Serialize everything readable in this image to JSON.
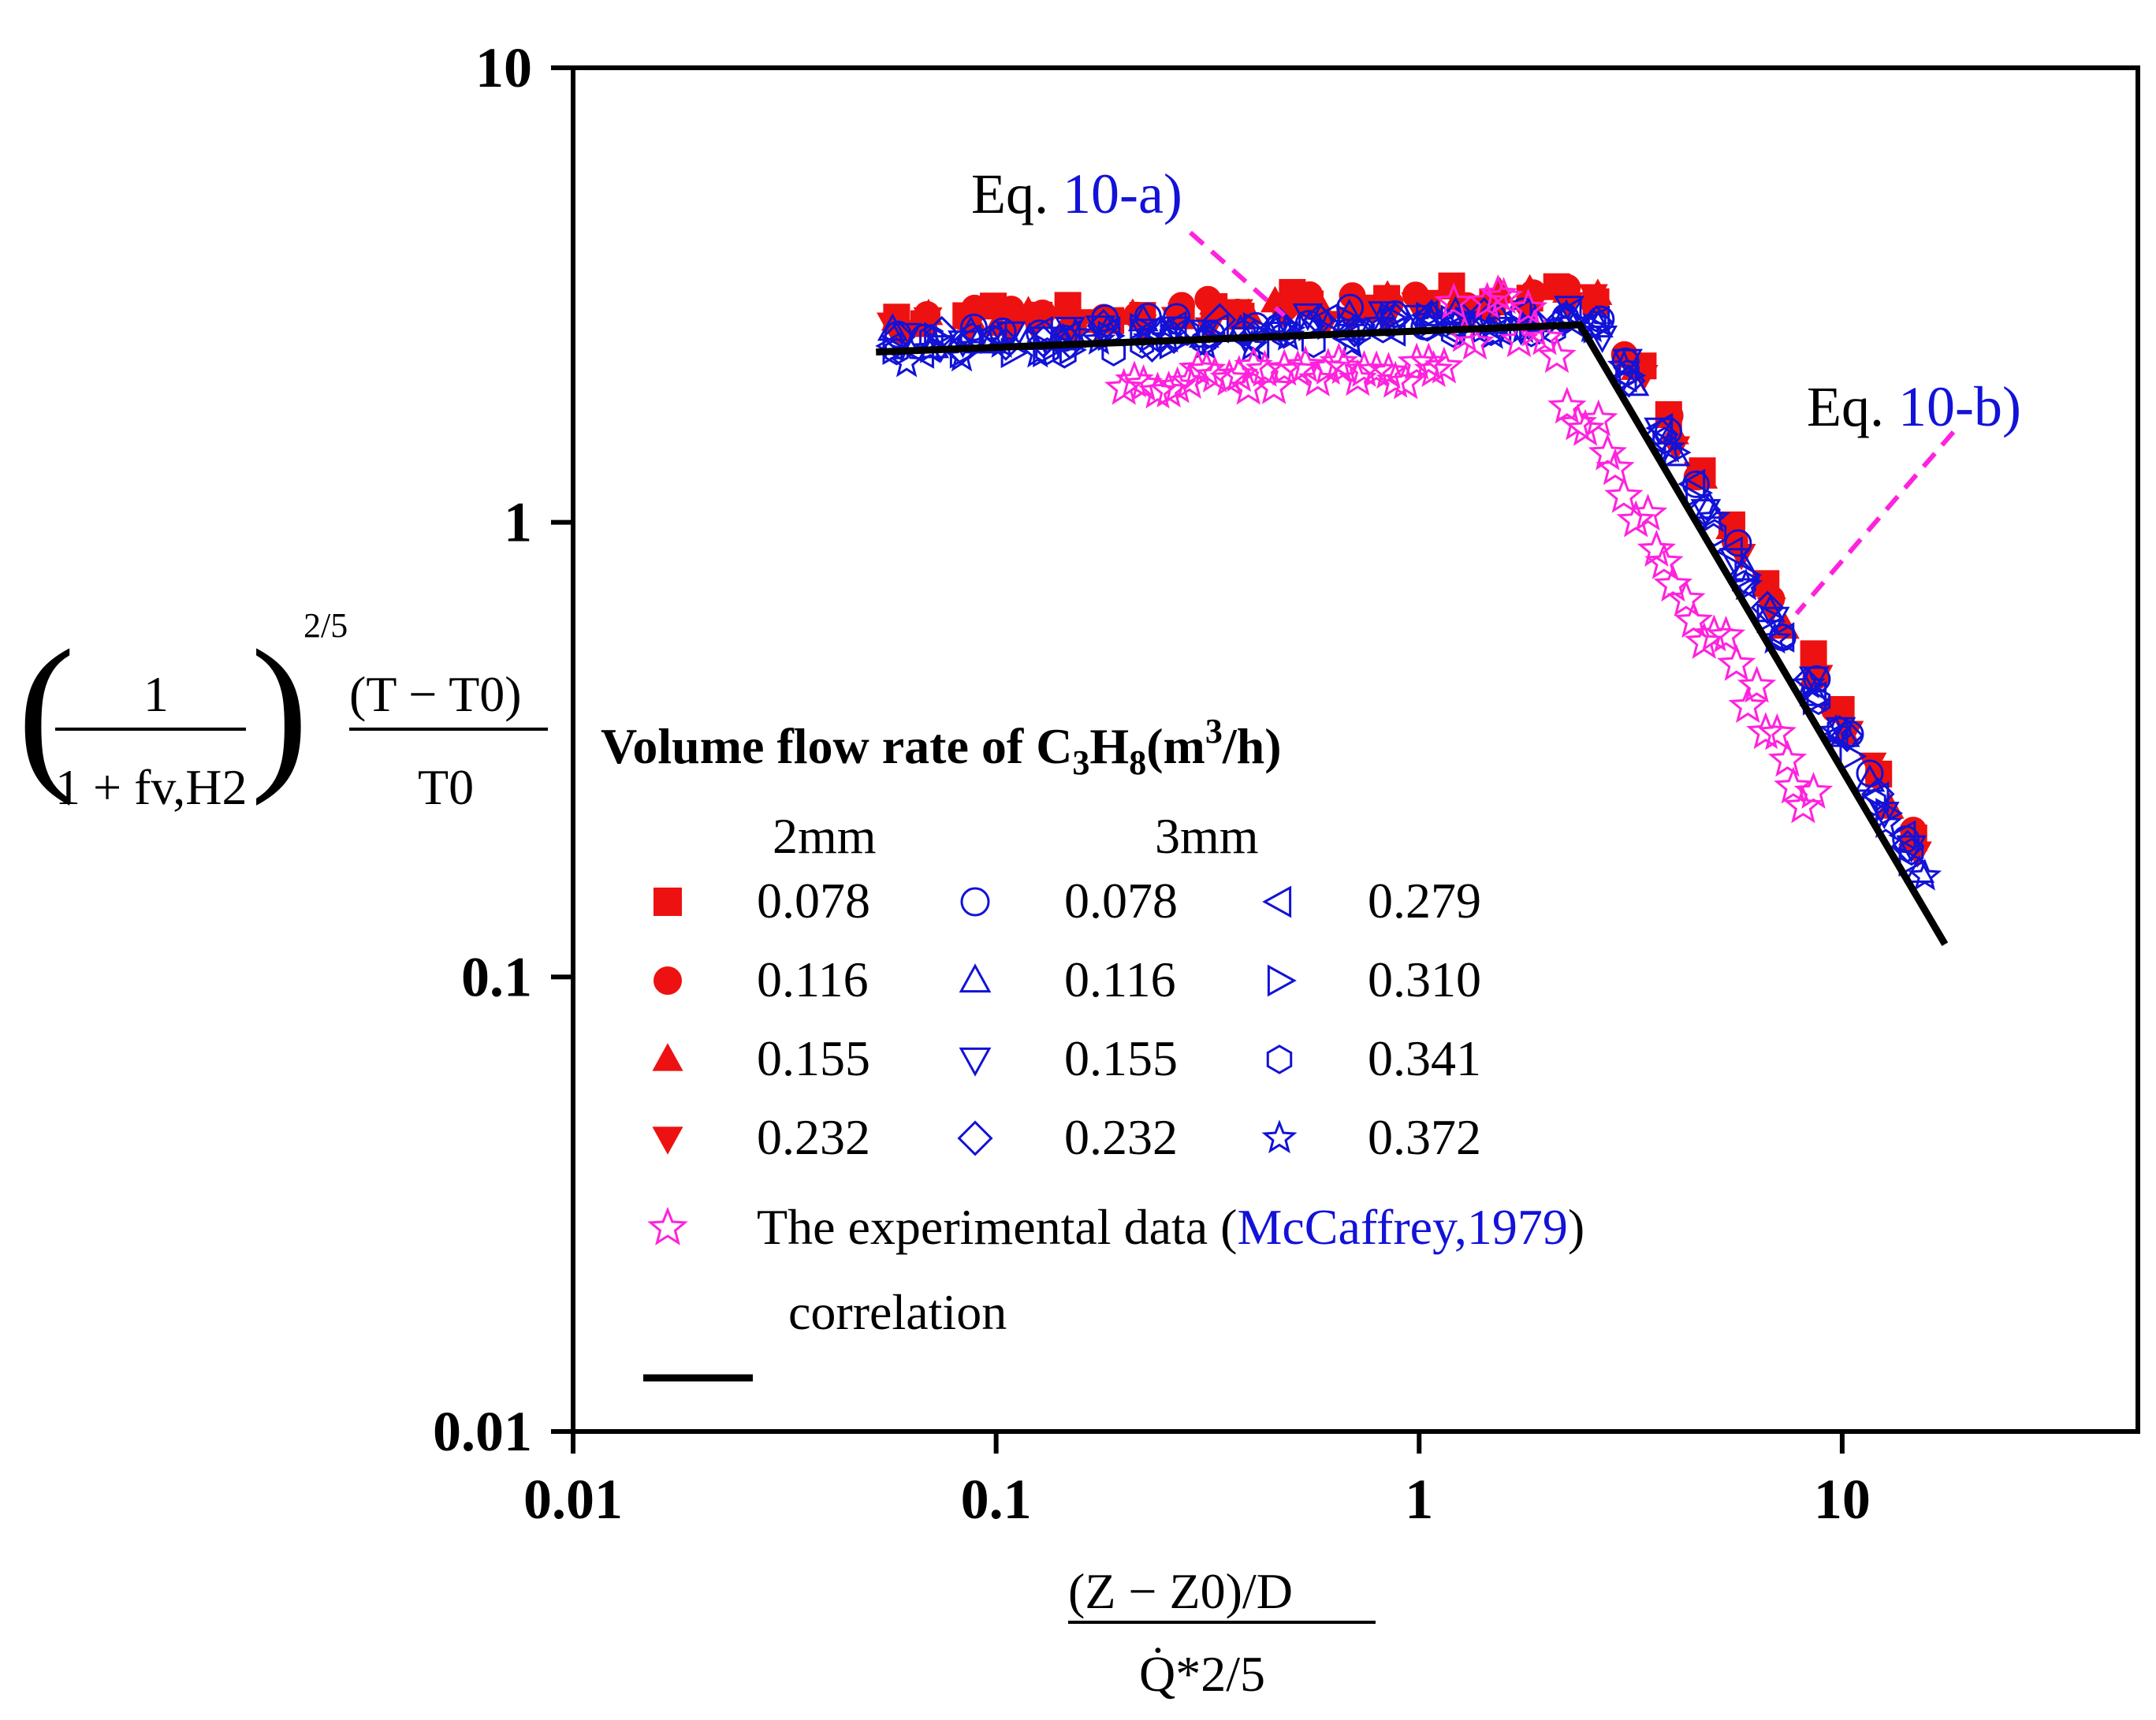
{
  "chart_data": {
    "type": "scatter",
    "scale": "log-log",
    "xlim": [
      0.01,
      50
    ],
    "ylim": [
      0.01,
      10
    ],
    "x_ticks": [
      "0.01",
      "0.1",
      "1",
      "10"
    ],
    "y_ticks": [
      "10",
      "1",
      "0.1",
      "0.01"
    ],
    "xlabel": {
      "numerator": "(Z − Z0)/D",
      "denominator": "Q̇*2/5"
    },
    "ylabel": {
      "bracket_numerator": "1",
      "bracket_denominator": "1 + fv,H2",
      "exponent": "2/5",
      "numerator": "(T − T0)",
      "denominator": "T0"
    },
    "annotations": [
      {
        "prefix": "Eq. ",
        "ref": "10-a)",
        "x": 0.48,
        "y": 2.85
      },
      {
        "prefix": "Eq. ",
        "ref": "10-b)",
        "x": 7.8,
        "y": 0.63
      }
    ],
    "legend": {
      "title_prefix": "Volume flow rate of C",
      "title_sub1": "3",
      "title_mid": "H",
      "title_sub2": "8",
      "title_unit_open": "(m",
      "title_sup": "3",
      "title_unit_close": "/h)",
      "group1": "2mm",
      "group2": "3mm",
      "experimental_prefix": "The experimental data (",
      "experimental_ref": "McCaffrey,1979",
      "experimental_suffix": ")",
      "correlation": "correlation"
    },
    "series": [
      {
        "name": "0.078",
        "group": "2mm",
        "marker": "square-filled",
        "color": "#ee1111",
        "param": 1.18
      },
      {
        "name": "0.116",
        "group": "2mm",
        "marker": "circle-filled",
        "color": "#ee1111",
        "param": 1.16
      },
      {
        "name": "0.155",
        "group": "2mm",
        "marker": "triangle-up-filled",
        "color": "#ee1111",
        "param": 1.14
      },
      {
        "name": "0.232",
        "group": "2mm",
        "marker": "triangle-down-filled",
        "color": "#ee1111",
        "param": 1.12
      },
      {
        "name": "0.078",
        "group": "3mm",
        "marker": "circle-open",
        "color": "#1212d8",
        "param": 1.08
      },
      {
        "name": "0.116",
        "group": "3mm",
        "marker": "triangle-up-open",
        "color": "#1212d8",
        "param": 1.06
      },
      {
        "name": "0.155",
        "group": "3mm",
        "marker": "triangle-down-open",
        "color": "#1212d8",
        "param": 1.05
      },
      {
        "name": "0.232",
        "group": "3mm",
        "marker": "diamond-open",
        "color": "#1212d8",
        "param": 1.04
      },
      {
        "name": "0.279",
        "group": "3mm",
        "marker": "triangle-left-open",
        "color": "#1212d8",
        "param": 1.03
      },
      {
        "name": "0.310",
        "group": "3mm",
        "marker": "triangle-right-open",
        "color": "#1212d8",
        "param": 1.02
      },
      {
        "name": "0.341",
        "group": "3mm",
        "marker": "hexagon-open",
        "color": "#1212d8",
        "param": 1.01
      },
      {
        "name": "0.372",
        "group": "3mm",
        "marker": "star-open",
        "color": "#1212d8",
        "param": 1.0
      },
      {
        "name": "The experimental data (McCaffrey,1979)",
        "group": "reference",
        "marker": "star-open",
        "color": "#ff22dd",
        "param": 0.82
      }
    ],
    "correlation": {
      "points": [
        [
          0.052,
          2.37
        ],
        [
          2.4,
          2.72
        ],
        [
          17.5,
          0.118
        ]
      ],
      "color": "#000000",
      "label": "correlation"
    }
  }
}
